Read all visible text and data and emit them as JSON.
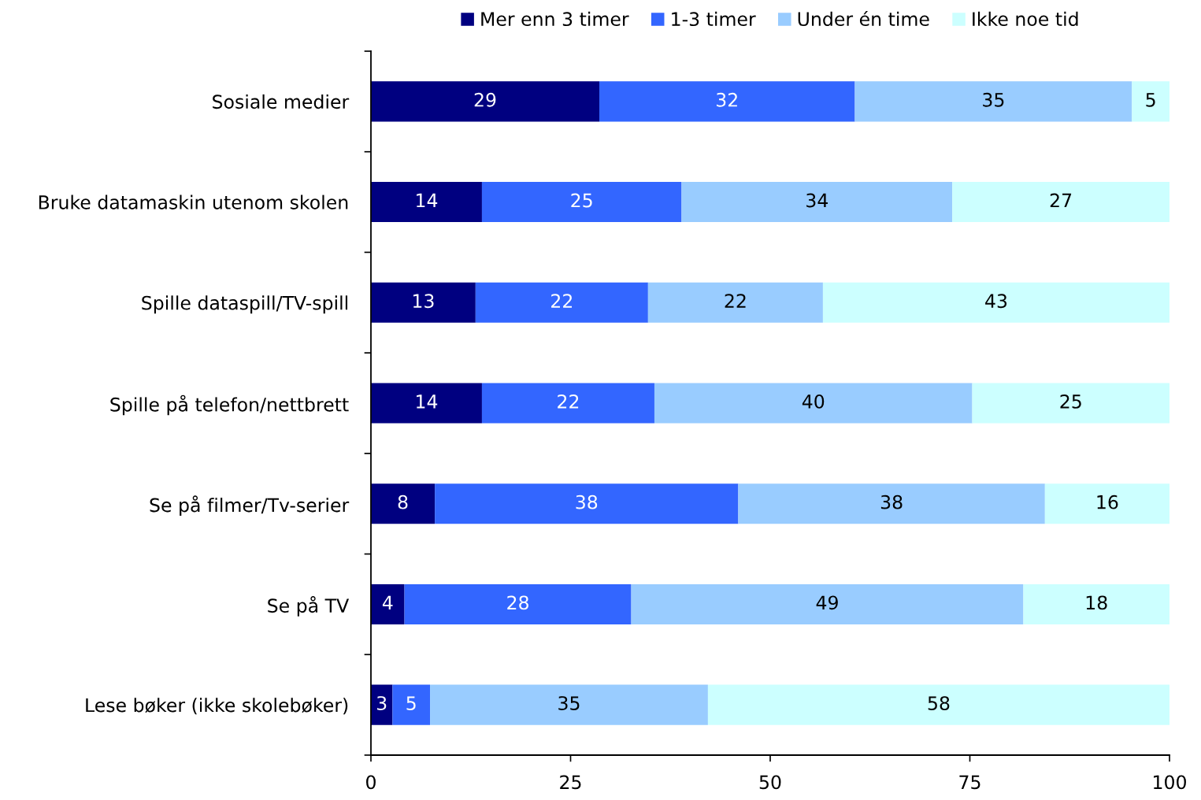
{
  "chart_data": {
    "type": "bar",
    "orientation": "horizontal",
    "stacked": true,
    "categories": [
      "Sosiale medier",
      "Bruke datamaskin utenom skolen",
      "Spille dataspill/TV-spill",
      "Spille på telefon/nettbrett",
      "Se på filmer/Tv-serier",
      "Se på TV",
      "Lese bøker (ikke skolebøker)"
    ],
    "series": [
      {
        "name": "Mer enn 3 timer",
        "color": "#000080",
        "values": [
          28.6,
          13.9,
          13.1,
          13.9,
          8.0,
          4.2,
          2.7
        ],
        "value_labels": [
          "29",
          "14",
          "13",
          "14",
          "8",
          "4",
          "3"
        ]
      },
      {
        "name": "1-3 timer",
        "color": "#3366ff",
        "values": [
          32.0,
          25.0,
          21.6,
          21.6,
          38.0,
          28.4,
          4.7
        ],
        "value_labels": [
          "32",
          "25",
          "22",
          "22",
          "38",
          "28",
          "5"
        ]
      },
      {
        "name": "Under én time",
        "color": "#99ccff",
        "values": [
          34.7,
          33.9,
          21.9,
          39.8,
          38.4,
          49.1,
          34.8
        ],
        "value_labels": [
          "35",
          "34",
          "22",
          "40",
          "38",
          "49",
          "35"
        ]
      },
      {
        "name": "Ikke noe tid",
        "color": "#ccffff",
        "values": [
          4.7,
          27.2,
          43.4,
          24.7,
          15.6,
          18.3,
          57.8
        ],
        "value_labels": [
          "5",
          "27",
          "43",
          "25",
          "16",
          "18",
          "58"
        ]
      }
    ],
    "xlim": [
      0,
      100
    ],
    "xticks": [
      0,
      25,
      50,
      75,
      100
    ],
    "grid": false,
    "legend": "top"
  }
}
